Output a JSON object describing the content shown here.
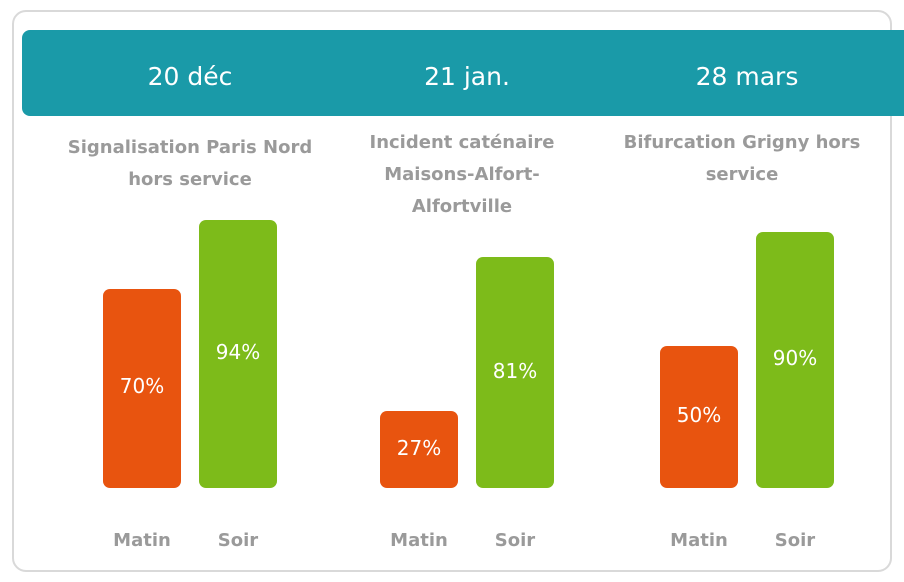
{
  "chart_data": [
    {
      "type": "bar",
      "title": "20 déc",
      "subtitle": "Signalisation Paris Nord hors service",
      "categories": [
        "Matin",
        "Soir"
      ],
      "values": [
        70,
        94
      ],
      "value_labels": [
        "70%",
        "94%"
      ],
      "colors": [
        "#e8540f",
        "#7dbb1a"
      ]
    },
    {
      "type": "bar",
      "title": "21 jan.",
      "subtitle": "Incident caténaire Maisons-Alfort-Alfortville",
      "categories": [
        "Matin",
        "Soir"
      ],
      "values": [
        27,
        81
      ],
      "value_labels": [
        "27%",
        "81%"
      ],
      "colors": [
        "#e8540f",
        "#7dbb1a"
      ]
    },
    {
      "type": "bar",
      "title": "28 mars",
      "subtitle": "Bifurcation Grigny hors service",
      "categories": [
        "Matin",
        "Soir"
      ],
      "values": [
        50,
        90
      ],
      "value_labels": [
        "50%",
        "90%"
      ],
      "colors": [
        "#e8540f",
        "#7dbb1a"
      ]
    }
  ]
}
